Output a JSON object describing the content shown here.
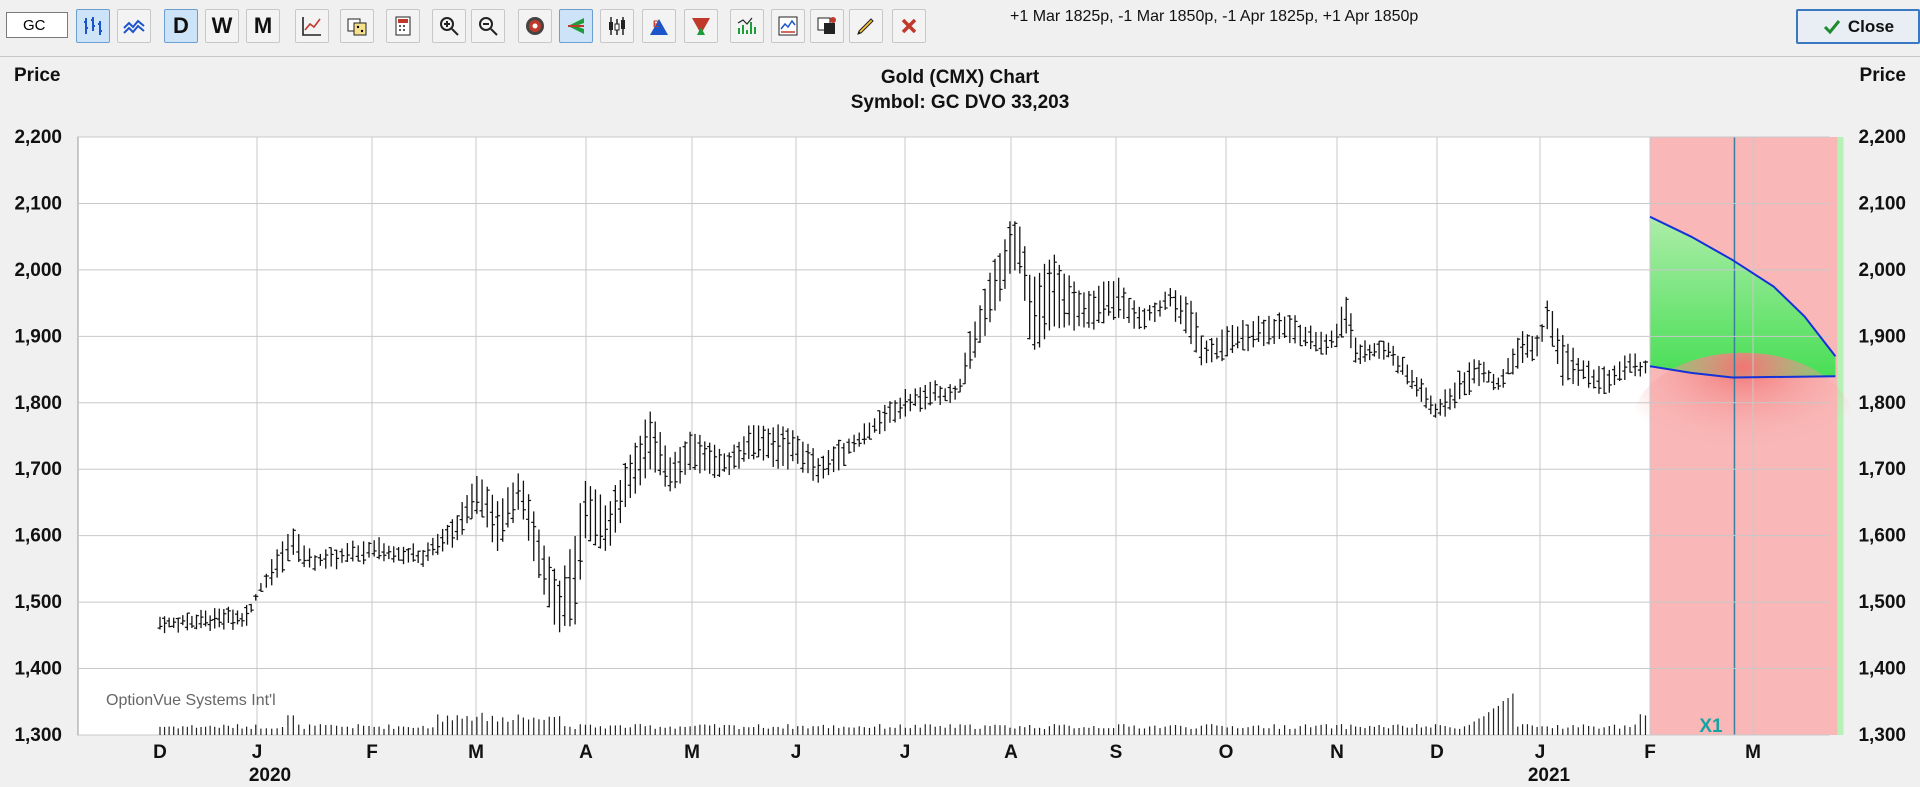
{
  "toolbar": {
    "symbol_value": "GC",
    "trade_text": "+1 Mar 1825p, -1 Mar 1850p, -1 Apr 1825p, +1 Apr 1850p",
    "close_label": "Close",
    "period_labels": [
      "D",
      "W",
      "M"
    ],
    "buttons": [
      {
        "name": "bar-chart-icon",
        "active": true
      },
      {
        "name": "line-chart-icon",
        "active": false
      },
      {
        "name": "daily-button",
        "label": "D",
        "active": true
      },
      {
        "name": "weekly-button",
        "label": "W",
        "active": false
      },
      {
        "name": "monthly-button",
        "label": "M",
        "active": false
      },
      {
        "name": "study-icon",
        "active": false
      },
      {
        "name": "dice-icon",
        "active": false
      },
      {
        "name": "calculator-icon",
        "active": false
      },
      {
        "name": "zoom-in-icon",
        "active": false
      },
      {
        "name": "zoom-out-icon",
        "active": false
      },
      {
        "name": "target-icon",
        "active": false
      },
      {
        "name": "arrow-left-icon",
        "active": true
      },
      {
        "name": "candlestick-icon",
        "active": false
      },
      {
        "name": "earnings-icon",
        "active": false
      },
      {
        "name": "dividend-icon",
        "active": false
      },
      {
        "name": "volume-icon",
        "active": false
      },
      {
        "name": "indicator-icon",
        "active": false
      },
      {
        "name": "color-icon",
        "active": false
      },
      {
        "name": "pencil-icon",
        "active": false
      },
      {
        "name": "delete-icon",
        "active": false
      }
    ]
  },
  "chart_data": {
    "type": "bar",
    "title": "Gold (CMX) Chart",
    "subtitle": "Symbol: GC  DVO 33,203",
    "ylabel_left": "Price",
    "ylabel_right": "Price",
    "ylim": [
      1300,
      2200
    ],
    "yticks": [
      1300,
      1400,
      1500,
      1600,
      1700,
      1800,
      1900,
      2000,
      2100,
      2200
    ],
    "ytick_labels": [
      "1,300",
      "1,400",
      "1,500",
      "1,600",
      "1,700",
      "1,800",
      "1,900",
      "2,000",
      "2,100",
      "2,200"
    ],
    "month_labels": [
      "D",
      "J",
      "F",
      "M",
      "A",
      "M",
      "J",
      "J",
      "A",
      "S",
      "O",
      "N",
      "D",
      "J",
      "F",
      "M"
    ],
    "year_labels": [
      "2020",
      "2021"
    ],
    "watermark": "OptionVue Systems Int'l",
    "marker_label": "X1",
    "price_anchors": [
      {
        "month": 0.0,
        "high": 1478,
        "low": 1458
      },
      {
        "month": 0.9,
        "high": 1490,
        "low": 1465
      },
      {
        "month": 1.0,
        "high": 1520,
        "low": 1505
      },
      {
        "month": 1.2,
        "high": 1590,
        "low": 1545
      },
      {
        "month": 1.3,
        "high": 1615,
        "low": 1570
      },
      {
        "month": 1.5,
        "high": 1570,
        "low": 1548
      },
      {
        "month": 2.0,
        "high": 1595,
        "low": 1565
      },
      {
        "month": 2.5,
        "high": 1580,
        "low": 1555
      },
      {
        "month": 2.8,
        "high": 1630,
        "low": 1590
      },
      {
        "month": 3.0,
        "high": 1690,
        "low": 1640
      },
      {
        "month": 3.2,
        "high": 1650,
        "low": 1580
      },
      {
        "month": 3.4,
        "high": 1700,
        "low": 1640
      },
      {
        "month": 3.6,
        "high": 1600,
        "low": 1520
      },
      {
        "month": 3.75,
        "high": 1530,
        "low": 1455
      },
      {
        "month": 3.9,
        "high": 1600,
        "low": 1470
      },
      {
        "month": 4.0,
        "high": 1690,
        "low": 1600
      },
      {
        "month": 4.2,
        "high": 1640,
        "low": 1580
      },
      {
        "month": 4.4,
        "high": 1720,
        "low": 1650
      },
      {
        "month": 4.6,
        "high": 1785,
        "low": 1700
      },
      {
        "month": 4.8,
        "high": 1720,
        "low": 1670
      },
      {
        "month": 5.0,
        "high": 1760,
        "low": 1700
      },
      {
        "month": 5.3,
        "high": 1720,
        "low": 1690
      },
      {
        "month": 5.6,
        "high": 1770,
        "low": 1720
      },
      {
        "month": 5.9,
        "high": 1760,
        "low": 1700
      },
      {
        "month": 6.0,
        "high": 1755,
        "low": 1710
      },
      {
        "month": 6.2,
        "high": 1720,
        "low": 1675
      },
      {
        "month": 6.5,
        "high": 1750,
        "low": 1720
      },
      {
        "month": 6.8,
        "high": 1790,
        "low": 1760
      },
      {
        "month": 7.0,
        "high": 1815,
        "low": 1785
      },
      {
        "month": 7.3,
        "high": 1830,
        "low": 1800
      },
      {
        "month": 7.5,
        "high": 1820,
        "low": 1800
      },
      {
        "month": 7.6,
        "high": 1900,
        "low": 1850
      },
      {
        "month": 7.8,
        "high": 1990,
        "low": 1920
      },
      {
        "month": 8.0,
        "high": 2075,
        "low": 2000
      },
      {
        "month": 8.1,
        "high": 2060,
        "low": 1990
      },
      {
        "month": 8.2,
        "high": 1980,
        "low": 1870
      },
      {
        "month": 8.4,
        "high": 2020,
        "low": 1920
      },
      {
        "month": 8.7,
        "high": 1960,
        "low": 1910
      },
      {
        "month": 9.0,
        "high": 1990,
        "low": 1930
      },
      {
        "month": 9.2,
        "high": 1940,
        "low": 1910
      },
      {
        "month": 9.5,
        "high": 1970,
        "low": 1940
      },
      {
        "month": 9.7,
        "high": 1950,
        "low": 1880
      },
      {
        "month": 9.8,
        "high": 1890,
        "low": 1855
      },
      {
        "month": 10.0,
        "high": 1910,
        "low": 1870
      },
      {
        "month": 10.3,
        "high": 1930,
        "low": 1890
      },
      {
        "month": 10.6,
        "high": 1930,
        "low": 1895
      },
      {
        "month": 10.9,
        "high": 1900,
        "low": 1870
      },
      {
        "month": 11.0,
        "high": 1920,
        "low": 1890
      },
      {
        "month": 11.1,
        "high": 1965,
        "low": 1900
      },
      {
        "month": 11.2,
        "high": 1890,
        "low": 1860
      },
      {
        "month": 11.5,
        "high": 1895,
        "low": 1870
      },
      {
        "month": 11.8,
        "high": 1840,
        "low": 1810
      },
      {
        "month": 12.0,
        "high": 1800,
        "low": 1770
      },
      {
        "month": 12.2,
        "high": 1840,
        "low": 1800
      },
      {
        "month": 12.4,
        "high": 1870,
        "low": 1830
      },
      {
        "month": 12.6,
        "high": 1840,
        "low": 1820
      },
      {
        "month": 12.8,
        "high": 1905,
        "low": 1860
      },
      {
        "month": 13.0,
        "high": 1900,
        "low": 1870
      },
      {
        "month": 13.05,
        "high": 1960,
        "low": 1920
      },
      {
        "month": 13.2,
        "high": 1900,
        "low": 1830
      },
      {
        "month": 13.4,
        "high": 1860,
        "low": 1830
      },
      {
        "month": 13.6,
        "high": 1850,
        "low": 1810
      },
      {
        "month": 13.8,
        "high": 1870,
        "low": 1845
      },
      {
        "month": 14.0,
        "high": 1865,
        "low": 1840
      }
    ],
    "projection": {
      "upper_curve": [
        [
          14.0,
          2080
        ],
        [
          14.4,
          2050
        ],
        [
          14.8,
          2015
        ],
        [
          15.2,
          1975
        ],
        [
          15.5,
          1930
        ],
        [
          15.8,
          1870
        ]
      ],
      "lower_curve": [
        [
          14.0,
          1855
        ],
        [
          14.4,
          1845
        ],
        [
          14.8,
          1838
        ],
        [
          15.8,
          1840
        ]
      ],
      "marker_month": 14.82
    }
  }
}
